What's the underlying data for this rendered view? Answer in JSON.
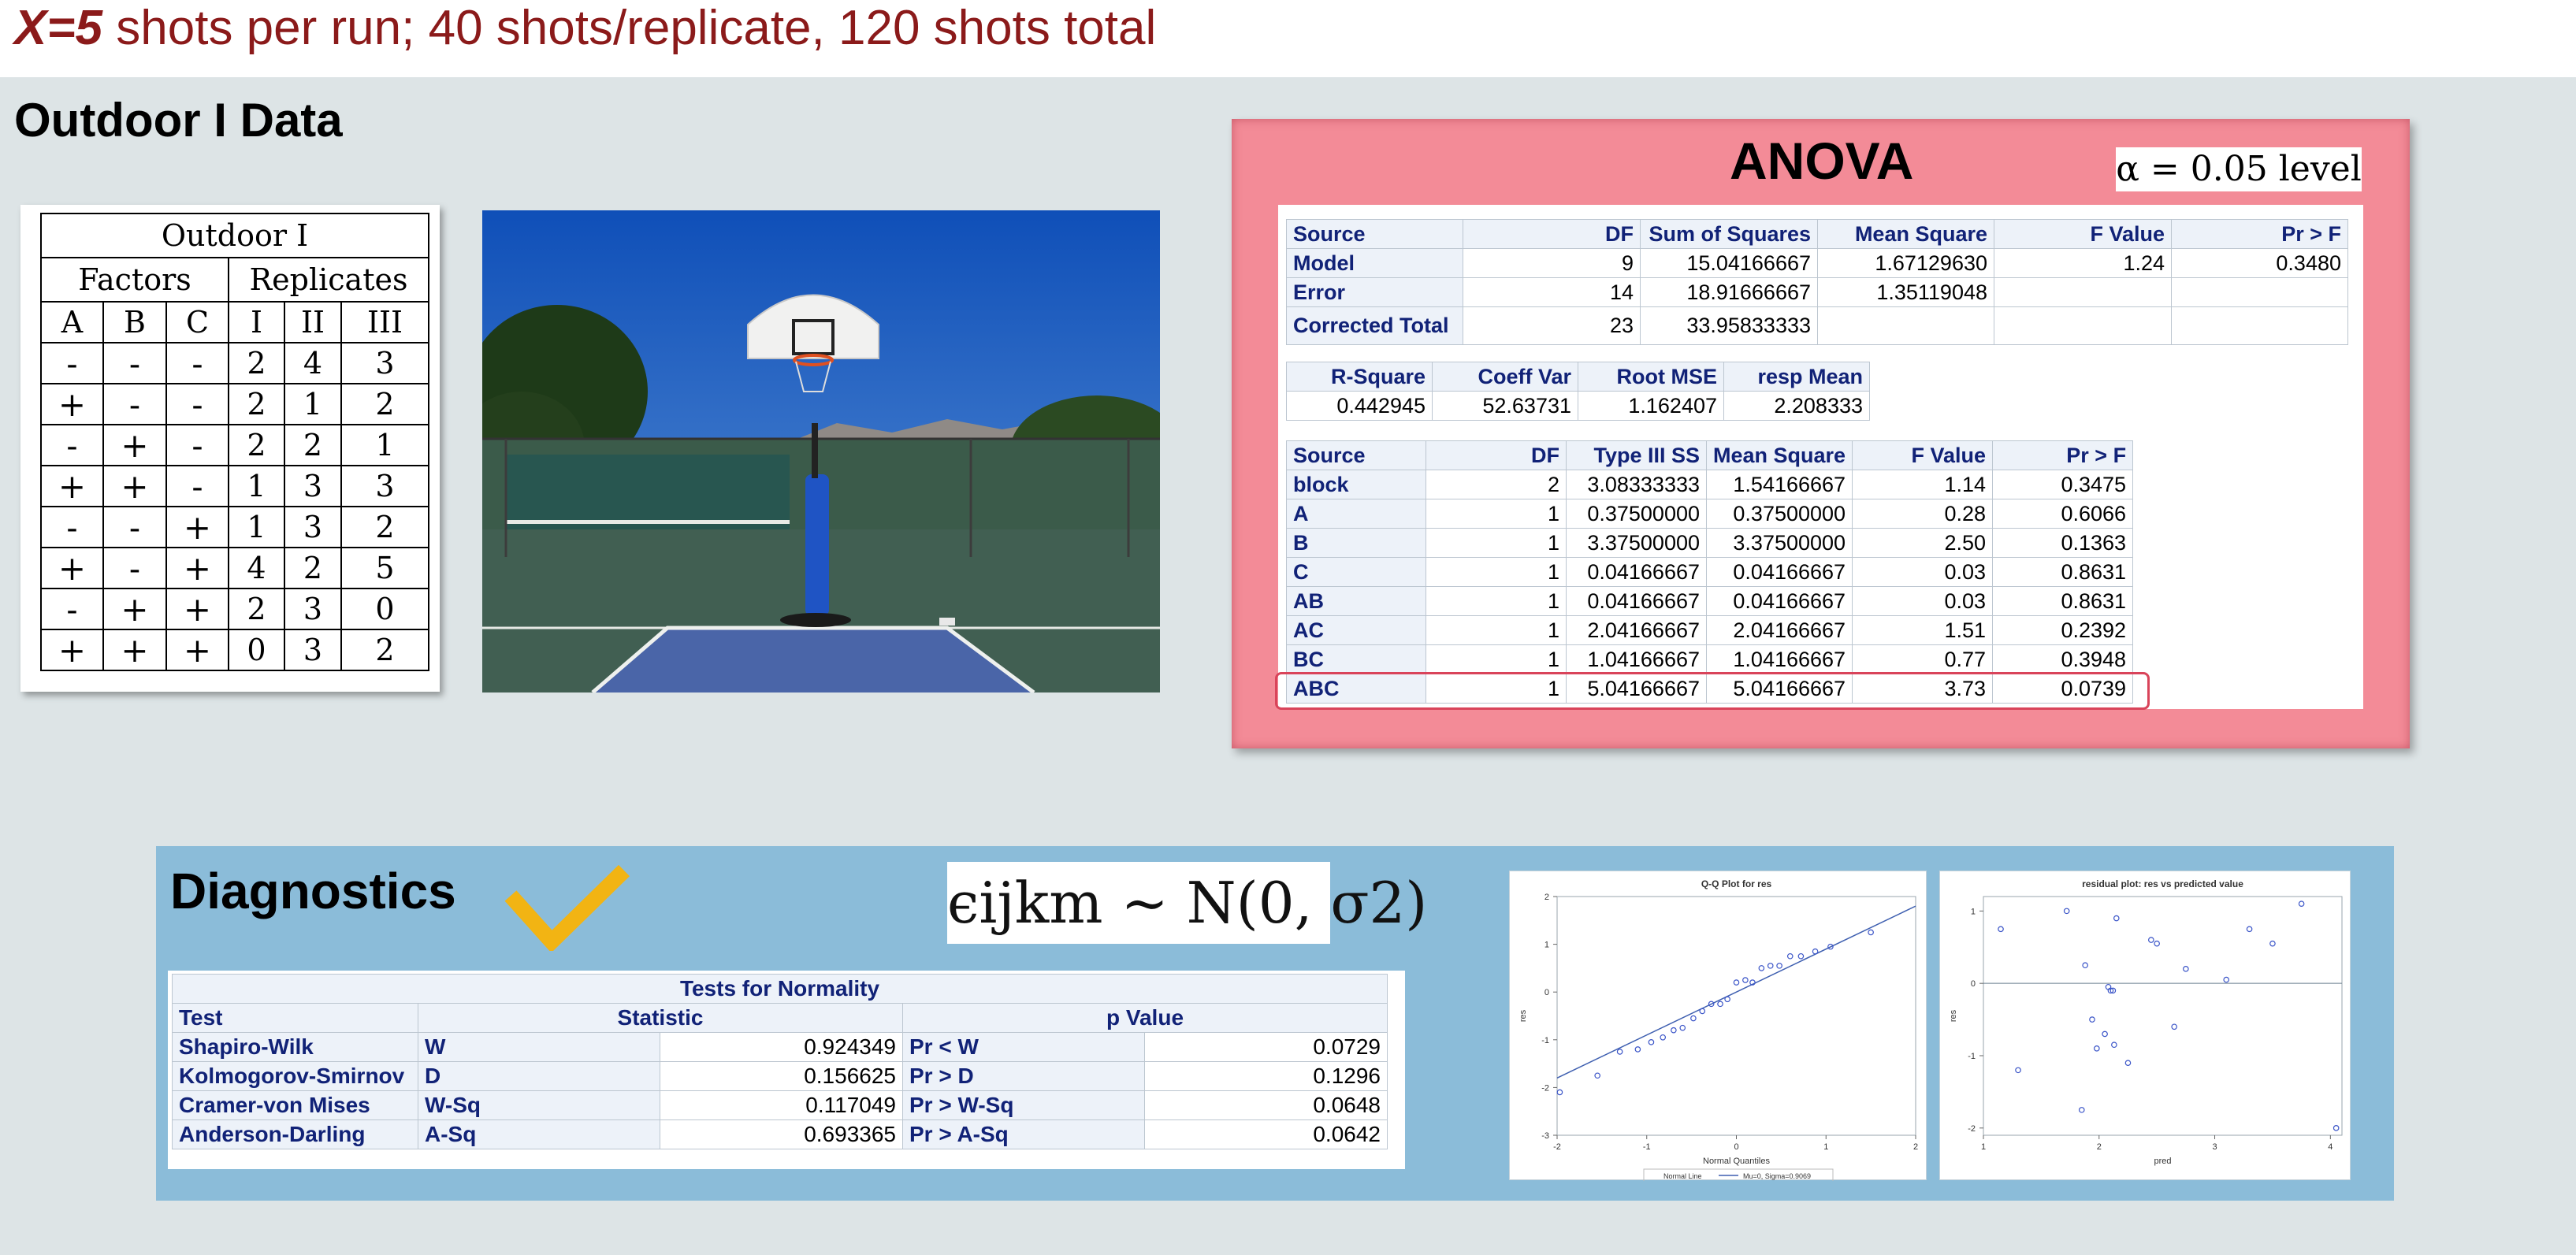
{
  "header": {
    "x_label": "X=5",
    "rest": " shots per run; 40 shots/replicate, 120 shots total"
  },
  "section_title": "Outdoor I Data",
  "factor_table": {
    "title": "Outdoor I",
    "group_factors": "Factors",
    "group_replicates": "Replicates",
    "columns": [
      "A",
      "B",
      "C",
      "I",
      "II",
      "III"
    ],
    "rows": [
      [
        "-",
        "-",
        "-",
        "2",
        "4",
        "3"
      ],
      [
        "+",
        "-",
        "-",
        "2",
        "1",
        "2"
      ],
      [
        "-",
        "+",
        "-",
        "2",
        "2",
        "1"
      ],
      [
        "+",
        "+",
        "-",
        "1",
        "3",
        "3"
      ],
      [
        "-",
        "-",
        "+",
        "1",
        "3",
        "2"
      ],
      [
        "+",
        "-",
        "+",
        "4",
        "2",
        "5"
      ],
      [
        "-",
        "+",
        "+",
        "2",
        "3",
        "0"
      ],
      [
        "+",
        "+",
        "+",
        "0",
        "3",
        "2"
      ]
    ]
  },
  "anova": {
    "title": "ANOVA",
    "alpha_label": "α = 0.05 level",
    "model_table": {
      "headers": [
        "Source",
        "DF",
        "Sum of Squares",
        "Mean Square",
        "F Value",
        "Pr > F"
      ],
      "rows": [
        [
          "Model",
          "9",
          "15.04166667",
          "1.67129630",
          "1.24",
          "0.3480"
        ],
        [
          "Error",
          "14",
          "18.91666667",
          "1.35119048",
          "",
          ""
        ],
        [
          "Corrected Total",
          "23",
          "33.95833333",
          "",
          "",
          ""
        ]
      ]
    },
    "fit_table": {
      "headers": [
        "R-Square",
        "Coeff Var",
        "Root MSE",
        "resp Mean"
      ],
      "values": [
        "0.442945",
        "52.63731",
        "1.162407",
        "2.208333"
      ]
    },
    "effects_table": {
      "headers": [
        "Source",
        "DF",
        "Type III SS",
        "Mean Square",
        "F Value",
        "Pr > F"
      ],
      "rows": [
        [
          "block",
          "2",
          "3.08333333",
          "1.54166667",
          "1.14",
          "0.3475"
        ],
        [
          "A",
          "1",
          "0.37500000",
          "0.37500000",
          "0.28",
          "0.6066"
        ],
        [
          "B",
          "1",
          "3.37500000",
          "3.37500000",
          "2.50",
          "0.1363"
        ],
        [
          "C",
          "1",
          "0.04166667",
          "0.04166667",
          "0.03",
          "0.8631"
        ],
        [
          "AB",
          "1",
          "0.04166667",
          "0.04166667",
          "0.03",
          "0.8631"
        ],
        [
          "AC",
          "1",
          "2.04166667",
          "2.04166667",
          "1.51",
          "0.2392"
        ],
        [
          "BC",
          "1",
          "1.04166667",
          "1.04166667",
          "0.77",
          "0.3948"
        ],
        [
          "ABC",
          "1",
          "5.04166667",
          "5.04166667",
          "3.73",
          "0.0739"
        ]
      ]
    }
  },
  "diagnostics": {
    "title": "Diagnostics",
    "formula_label": "ϵijkm ∼ N(0, σ2)",
    "normality": {
      "title": "Tests for Normality",
      "headers": [
        "Test",
        "Statistic",
        "p Value"
      ],
      "rows": [
        [
          "Shapiro-Wilk",
          "W",
          "0.924349",
          "Pr < W",
          "0.0729"
        ],
        [
          "Kolmogorov-Smirnov",
          "D",
          "0.156625",
          "Pr > D",
          "0.1296"
        ],
        [
          "Cramer-von Mises",
          "W-Sq",
          "0.117049",
          "Pr > W-Sq",
          "0.0648"
        ],
        [
          "Anderson-Darling",
          "A-Sq",
          "0.693365",
          "Pr > A-Sq",
          "0.0642"
        ]
      ]
    }
  },
  "colors": {
    "header_text": "#8b1a1a",
    "anova_bg": "#f38b97",
    "diag_bg": "#8bbcd9",
    "check": "#f2b413",
    "sas_header": "#112277",
    "highlight": "#d9445a"
  },
  "chart_data": [
    {
      "type": "scatter",
      "title": "Q-Q Plot for res",
      "xlabel": "Normal Quantiles",
      "ylabel": "res",
      "xlim": [
        -2,
        2
      ],
      "ylim": [
        -3,
        2
      ],
      "x_ticks": [
        "-2",
        "-1",
        "0",
        "1",
        "2"
      ],
      "y_ticks": [
        "-3",
        "-2",
        "-1",
        "0",
        "1",
        "2"
      ],
      "legend": [
        "Normal Line",
        "Mu=0, Sigma=0.9069"
      ],
      "line": {
        "x": [
          -2,
          2
        ],
        "y": [
          -1.8,
          1.8
        ]
      },
      "x": [
        -1.97,
        -1.55,
        -1.3,
        -1.1,
        -0.95,
        -0.82,
        -0.7,
        -0.6,
        -0.48,
        -0.38,
        -0.28,
        -0.18,
        -0.1,
        0.0,
        0.1,
        0.18,
        0.28,
        0.38,
        0.48,
        0.6,
        0.72,
        0.88,
        1.05,
        1.5
      ],
      "y": [
        -2.1,
        -1.75,
        -1.25,
        -1.2,
        -1.05,
        -0.95,
        -0.8,
        -0.75,
        -0.55,
        -0.4,
        -0.25,
        -0.25,
        -0.15,
        0.2,
        0.25,
        0.2,
        0.5,
        0.55,
        0.55,
        0.75,
        0.75,
        0.85,
        0.95,
        1.25
      ]
    },
    {
      "type": "scatter",
      "title": "residual plot: res vs predicted value",
      "xlabel": "pred",
      "ylabel": "res",
      "xlim": [
        1,
        4.1
      ],
      "ylim": [
        -2.1,
        1.2
      ],
      "x_ticks": [
        "1",
        "2",
        "3",
        "4"
      ],
      "y_ticks": [
        "-2",
        "-1",
        "0",
        "1"
      ],
      "hline": 0,
      "x": [
        1.15,
        1.3,
        1.72,
        1.88,
        1.85,
        1.94,
        2.05,
        2.1,
        2.12,
        2.15,
        2.13,
        2.25,
        2.45,
        2.5,
        2.65,
        2.75,
        3.1,
        3.3,
        3.5,
        1.98,
        2.08,
        4.05,
        3.75
      ],
      "y": [
        0.75,
        -1.2,
        1.0,
        0.25,
        -1.75,
        -0.5,
        -0.7,
        -0.1,
        -0.1,
        0.9,
        -0.85,
        -1.1,
        0.6,
        0.55,
        -0.6,
        0.2,
        0.05,
        0.75,
        0.55,
        -0.9,
        -0.05,
        -2.0,
        1.1
      ]
    }
  ]
}
